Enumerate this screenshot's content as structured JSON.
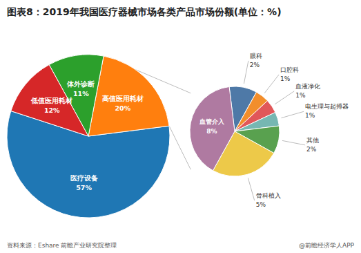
{
  "chart_data": [
    {
      "type": "pie",
      "title": "图表8：2019年我国医疗器械市场各类产品市场份额(单位：%)",
      "categories": [
        "医疗设备",
        "高值医用耗材",
        "体外诊断",
        "低值医用耗材"
      ],
      "values": [
        57,
        20,
        11,
        12
      ],
      "value_labels": [
        "57%",
        "20%",
        "11%",
        "12%"
      ],
      "data_labels": true,
      "annotations": [
        "资料来源：Eshare 前瞻产业研究院整理",
        "@前瞻经济学人APP"
      ]
    },
    {
      "type": "pie",
      "categories": [
        "眼科",
        "口腔科",
        "血液净化",
        "电生理与起搏器",
        "其他",
        "骨科植入",
        "血管介入"
      ],
      "values": [
        2,
        1,
        1,
        1,
        2,
        5,
        8
      ],
      "value_labels": [
        "2%",
        "1%",
        "1%",
        "1%",
        "2%",
        "5%",
        "8%"
      ],
      "data_labels": true
    }
  ]
}
